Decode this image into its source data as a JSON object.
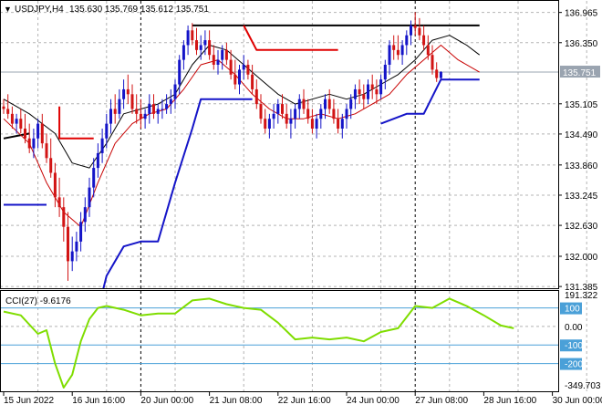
{
  "colors": {
    "bull": "#1414c8",
    "bear": "#d21414",
    "ma_fast": "#000000",
    "ma_slow": "#c80000",
    "stop_red": "#e00000",
    "stop_blue": "#1414c8",
    "cci": "#7fdd00",
    "level_line": "#4aa0d8",
    "grid": "#b4b4b4",
    "bid_line": "#9aa4b0",
    "price_tag_bg": "#9aa4b0"
  },
  "header": {
    "symbol": "USDJPY,H4",
    "ohlc": "135.630 135.769 135.612 135.751"
  },
  "price_tag": "135.751",
  "cci_header": "CCI(27) -9.6176",
  "chart_data": [
    {
      "type": "candlestick",
      "title": "USDJPY,H4",
      "y_ticks": [
        "136.965",
        "136.350",
        "135.751",
        "135.105",
        "134.490",
        "133.860",
        "133.245",
        "132.630",
        "132.000",
        "131.385"
      ],
      "y_tick_values": [
        136.965,
        136.35,
        135.751,
        135.105,
        134.49,
        133.86,
        133.245,
        132.63,
        132.0,
        131.385
      ],
      "ylim": [
        131.35,
        137.2
      ],
      "x_ticks": [
        "15 Jun 2022",
        "16 Jun 16:00",
        "20 Jun 00:00",
        "21 Jun 08:00",
        "22 Jun 16:00",
        "24 Jun 00:00",
        "27 Jun 08:00",
        "28 Jun 16:00",
        "30 Jun 00:00"
      ],
      "x_tick_bars": [
        0,
        16,
        32,
        48,
        64,
        80,
        96,
        112,
        128
      ],
      "vertical_grid_bars": [
        32,
        96
      ],
      "dashed_grid_bars": [
        8,
        24,
        40,
        56,
        72,
        88,
        104,
        120,
        136
      ],
      "ohlc": [
        [
          135.05,
          135.2,
          134.9,
          135.0
        ],
        [
          135.0,
          135.3,
          134.8,
          134.9
        ],
        [
          134.9,
          135.05,
          134.6,
          134.7
        ],
        [
          134.7,
          134.9,
          134.5,
          134.8
        ],
        [
          134.8,
          135.0,
          134.5,
          134.6
        ],
        [
          134.6,
          134.9,
          134.3,
          134.4
        ],
        [
          134.4,
          134.7,
          134.1,
          134.2
        ],
        [
          134.2,
          134.6,
          134.0,
          134.4
        ],
        [
          134.4,
          134.8,
          134.2,
          134.7
        ],
        [
          134.7,
          134.9,
          134.2,
          134.3
        ],
        [
          134.3,
          134.5,
          133.9,
          134.0
        ],
        [
          134.0,
          134.4,
          133.6,
          133.7
        ],
        [
          133.7,
          133.9,
          133.0,
          133.2
        ],
        [
          133.2,
          133.6,
          132.8,
          133.0
        ],
        [
          133.0,
          133.2,
          132.3,
          132.6
        ],
        [
          132.6,
          132.9,
          131.5,
          131.9
        ],
        [
          131.9,
          132.4,
          131.7,
          132.1
        ],
        [
          132.1,
          132.5,
          131.9,
          132.3
        ],
        [
          132.3,
          132.9,
          132.1,
          132.7
        ],
        [
          132.7,
          133.2,
          132.5,
          133.0
        ],
        [
          133.0,
          133.6,
          132.8,
          133.4
        ],
        [
          133.4,
          134.0,
          133.2,
          133.8
        ],
        [
          133.8,
          134.3,
          133.6,
          134.1
        ],
        [
          134.1,
          134.6,
          133.9,
          134.4
        ],
        [
          134.4,
          134.9,
          134.2,
          134.7
        ],
        [
          134.7,
          135.2,
          134.5,
          135.0
        ],
        [
          135.0,
          135.3,
          134.7,
          134.9
        ],
        [
          134.9,
          135.4,
          134.8,
          135.2
        ],
        [
          135.2,
          135.6,
          135.0,
          135.4
        ],
        [
          135.4,
          135.7,
          135.1,
          135.3
        ],
        [
          135.3,
          135.5,
          134.9,
          135.0
        ],
        [
          135.0,
          135.3,
          134.7,
          134.9
        ],
        [
          134.9,
          135.2,
          134.6,
          134.8
        ],
        [
          134.8,
          135.0,
          134.6,
          134.9
        ],
        [
          134.9,
          135.3,
          134.7,
          135.1
        ],
        [
          135.1,
          135.3,
          134.8,
          134.9
        ],
        [
          134.9,
          135.1,
          134.7,
          135.0
        ],
        [
          135.0,
          135.2,
          134.8,
          135.0
        ],
        [
          135.0,
          135.3,
          134.9,
          135.1
        ],
        [
          135.1,
          135.4,
          134.9,
          135.2
        ],
        [
          135.2,
          135.6,
          135.0,
          135.5
        ],
        [
          135.5,
          136.1,
          135.3,
          136.0
        ],
        [
          136.0,
          136.4,
          135.8,
          136.3
        ],
        [
          136.3,
          136.7,
          136.1,
          136.6
        ],
        [
          136.6,
          136.75,
          136.3,
          136.4
        ],
        [
          136.4,
          136.65,
          136.1,
          136.2
        ],
        [
          136.2,
          136.5,
          136.0,
          136.3
        ],
        [
          136.3,
          136.6,
          136.1,
          136.4
        ],
        [
          136.4,
          136.6,
          136.0,
          136.1
        ],
        [
          136.1,
          136.3,
          135.8,
          135.9
        ],
        [
          135.9,
          136.2,
          135.7,
          136.0
        ],
        [
          136.0,
          136.3,
          135.8,
          136.2
        ],
        [
          136.2,
          136.35,
          135.9,
          136.0
        ],
        [
          136.0,
          136.2,
          135.6,
          135.7
        ],
        [
          135.7,
          136.0,
          135.4,
          135.5
        ],
        [
          135.5,
          135.9,
          135.3,
          135.8
        ],
        [
          135.8,
          136.1,
          135.6,
          135.9
        ],
        [
          135.9,
          136.0,
          135.6,
          135.7
        ],
        [
          135.7,
          135.9,
          135.3,
          135.4
        ],
        [
          135.4,
          135.6,
          135.0,
          135.1
        ],
        [
          135.1,
          135.3,
          134.7,
          134.8
        ],
        [
          134.8,
          135.0,
          134.5,
          134.6
        ],
        [
          134.6,
          134.9,
          134.4,
          134.8
        ],
        [
          134.8,
          135.1,
          134.6,
          134.9
        ],
        [
          134.9,
          135.2,
          134.7,
          135.1
        ],
        [
          135.1,
          135.3,
          134.8,
          134.9
        ],
        [
          134.9,
          135.1,
          134.6,
          134.7
        ],
        [
          134.7,
          135.0,
          134.4,
          134.8
        ],
        [
          134.8,
          135.1,
          134.6,
          135.0
        ],
        [
          135.0,
          135.3,
          134.8,
          135.2
        ],
        [
          135.2,
          135.4,
          134.9,
          135.0
        ],
        [
          135.0,
          135.2,
          134.7,
          134.8
        ],
        [
          134.8,
          135.0,
          134.5,
          134.6
        ],
        [
          134.6,
          134.9,
          134.4,
          134.8
        ],
        [
          134.8,
          135.1,
          134.6,
          135.0
        ],
        [
          135.0,
          135.3,
          134.8,
          135.2
        ],
        [
          135.2,
          135.4,
          134.9,
          135.0
        ],
        [
          135.0,
          135.2,
          134.7,
          134.8
        ],
        [
          134.8,
          135.0,
          134.5,
          134.6
        ],
        [
          134.6,
          134.9,
          134.4,
          134.8
        ],
        [
          134.8,
          135.1,
          134.6,
          135.0
        ],
        [
          135.0,
          135.3,
          134.8,
          135.2
        ],
        [
          135.2,
          135.5,
          135.0,
          135.4
        ],
        [
          135.4,
          135.6,
          135.1,
          135.3
        ],
        [
          135.3,
          135.5,
          135.0,
          135.2
        ],
        [
          135.2,
          135.6,
          135.1,
          135.5
        ],
        [
          135.5,
          135.7,
          135.2,
          135.4
        ],
        [
          135.4,
          135.6,
          135.1,
          135.3
        ],
        [
          135.3,
          135.7,
          135.2,
          135.6
        ],
        [
          135.6,
          136.0,
          135.4,
          135.9
        ],
        [
          135.9,
          136.4,
          135.7,
          136.3
        ],
        [
          136.3,
          136.5,
          136.0,
          136.2
        ],
        [
          136.2,
          136.5,
          136.0,
          136.1
        ],
        [
          136.1,
          136.4,
          135.9,
          136.3
        ],
        [
          136.3,
          136.6,
          136.1,
          136.5
        ],
        [
          136.5,
          136.8,
          136.3,
          136.7
        ],
        [
          136.7,
          136.97,
          136.5,
          136.65
        ],
        [
          136.65,
          136.85,
          136.4,
          136.5
        ],
        [
          136.5,
          136.7,
          136.2,
          136.3
        ],
        [
          136.3,
          136.5,
          136.0,
          136.1
        ],
        [
          136.1,
          136.3,
          135.7,
          135.8
        ],
        [
          135.8,
          135.95,
          135.55,
          135.63
        ],
        [
          135.63,
          135.77,
          135.61,
          135.751
        ]
      ],
      "ma_fast": [
        [
          0,
          135.2
        ],
        [
          6,
          134.9
        ],
        [
          12,
          134.5
        ],
        [
          16,
          133.9
        ],
        [
          20,
          133.8
        ],
        [
          24,
          134.3
        ],
        [
          28,
          134.9
        ],
        [
          32,
          135.0
        ],
        [
          36,
          135.1
        ],
        [
          40,
          135.3
        ],
        [
          44,
          135.9
        ],
        [
          48,
          136.3
        ],
        [
          52,
          136.2
        ],
        [
          56,
          135.9
        ],
        [
          60,
          135.6
        ],
        [
          64,
          135.3
        ],
        [
          68,
          135.1
        ],
        [
          72,
          135.2
        ],
        [
          76,
          135.3
        ],
        [
          80,
          135.2
        ],
        [
          84,
          135.3
        ],
        [
          88,
          135.5
        ],
        [
          92,
          135.7
        ],
        [
          96,
          136.0
        ],
        [
          100,
          136.4
        ],
        [
          104,
          136.5
        ],
        [
          108,
          136.3
        ],
        [
          111,
          136.1
        ]
      ],
      "ma_slow": [
        [
          0,
          134.8
        ],
        [
          6,
          134.3
        ],
        [
          10,
          133.5
        ],
        [
          14,
          132.9
        ],
        [
          18,
          132.6
        ],
        [
          22,
          133.5
        ],
        [
          26,
          134.3
        ],
        [
          30,
          134.7
        ],
        [
          34,
          134.9
        ],
        [
          38,
          135.0
        ],
        [
          42,
          135.4
        ],
        [
          46,
          135.9
        ],
        [
          50,
          136.0
        ],
        [
          54,
          135.7
        ],
        [
          58,
          135.3
        ],
        [
          62,
          135.0
        ],
        [
          66,
          134.8
        ],
        [
          70,
          134.8
        ],
        [
          74,
          134.9
        ],
        [
          78,
          134.8
        ],
        [
          82,
          134.9
        ],
        [
          86,
          135.1
        ],
        [
          90,
          135.3
        ],
        [
          94,
          135.7
        ],
        [
          98,
          136.0
        ],
        [
          102,
          136.3
        ],
        [
          106,
          136.0
        ],
        [
          111,
          135.75
        ]
      ],
      "stop_red": [
        [
          [
            13,
            135.05
          ],
          [
            13,
            134.4
          ],
          [
            21,
            134.4
          ]
        ],
        [
          [
            56,
            136.7
          ],
          [
            59,
            136.2
          ],
          [
            78,
            136.2
          ]
        ]
      ],
      "stop_blue": [
        [
          [
            0,
            133.05
          ],
          [
            10,
            133.05
          ]
        ],
        [
          [
            22,
            130.9
          ],
          [
            24,
            131.6
          ],
          [
            28,
            132.2
          ],
          [
            32,
            132.3
          ],
          [
            36,
            132.3
          ],
          [
            40,
            133.5
          ],
          [
            44,
            134.6
          ],
          [
            46,
            135.2
          ],
          [
            58,
            135.2
          ]
        ],
        [
          [
            88,
            134.7
          ],
          [
            94,
            134.9
          ],
          [
            98,
            134.9
          ],
          [
            102,
            135.6
          ],
          [
            111,
            135.6
          ]
        ]
      ],
      "resistance": [
        [
          44,
          136.7
        ],
        [
          111,
          136.7
        ]
      ],
      "support_black": [
        [
          0,
          134.4
        ],
        [
          6,
          134.5
        ]
      ],
      "current_price": 135.751
    },
    {
      "type": "line",
      "title": "CCI(27) -9.6176",
      "y_ticks": [
        "191.322",
        "100",
        "0.00",
        "-100",
        "-200",
        "-349.703"
      ],
      "y_tick_values": [
        191.322,
        100,
        0,
        -100,
        -200,
        -349.703
      ],
      "ylim": [
        -349.703,
        191.322
      ],
      "levels": [
        100,
        -100
      ],
      "cci": [
        [
          0,
          80
        ],
        [
          4,
          60
        ],
        [
          8,
          -40
        ],
        [
          10,
          -20
        ],
        [
          12,
          -200
        ],
        [
          14,
          -330
        ],
        [
          16,
          -260
        ],
        [
          18,
          -80
        ],
        [
          20,
          40
        ],
        [
          22,
          100
        ],
        [
          24,
          110
        ],
        [
          28,
          90
        ],
        [
          32,
          60
        ],
        [
          36,
          70
        ],
        [
          40,
          70
        ],
        [
          44,
          140
        ],
        [
          48,
          150
        ],
        [
          52,
          120
        ],
        [
          56,
          100
        ],
        [
          60,
          90
        ],
        [
          64,
          20
        ],
        [
          68,
          -70
        ],
        [
          72,
          -60
        ],
        [
          76,
          -70
        ],
        [
          80,
          -60
        ],
        [
          84,
          -80
        ],
        [
          88,
          -30
        ],
        [
          92,
          -10
        ],
        [
          96,
          110
        ],
        [
          100,
          100
        ],
        [
          104,
          150
        ],
        [
          108,
          110
        ],
        [
          112,
          60
        ],
        [
          116,
          5
        ],
        [
          119,
          -9.6
        ]
      ]
    }
  ]
}
